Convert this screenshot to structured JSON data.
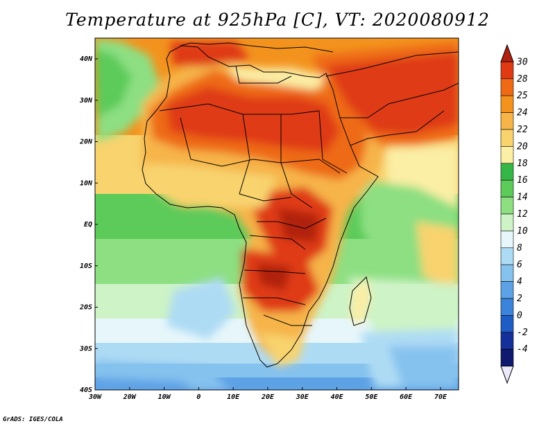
{
  "title": "Temperature at 925hPa [C], VT: 2020080912",
  "credit": "GrADS: IGES/COLA",
  "map": {
    "lon_range": [
      -30,
      75
    ],
    "lat_range": [
      -40,
      45
    ],
    "lat_ticks": [
      "40N",
      "30N",
      "20N",
      "10N",
      "EQ",
      "10S",
      "20S",
      "30S",
      "40S"
    ],
    "lon_ticks": [
      "30W",
      "20W",
      "10W",
      "0",
      "10E",
      "20E",
      "30E",
      "40E",
      "50E",
      "60E",
      "70E"
    ]
  },
  "colorbar": {
    "levels": [
      "30",
      "28",
      "25",
      "24",
      "22",
      "20",
      "18",
      "16",
      "14",
      "12",
      "10",
      "8",
      "6",
      "4",
      "2",
      "0",
      "-2",
      "-4"
    ],
    "colors": [
      "#b0200f",
      "#df3a14",
      "#ee6a14",
      "#f3931e",
      "#f6b449",
      "#f8d36e",
      "#fbeea5",
      "#35b646",
      "#5ccb5a",
      "#8ddf82",
      "#cdf3c6",
      "#e6f6fb",
      "#aedbf4",
      "#86c2ee",
      "#5ea2e6",
      "#3c83da",
      "#1f5cc4",
      "#16309a",
      "#0f1a6e",
      "#eceafa"
    ]
  }
}
